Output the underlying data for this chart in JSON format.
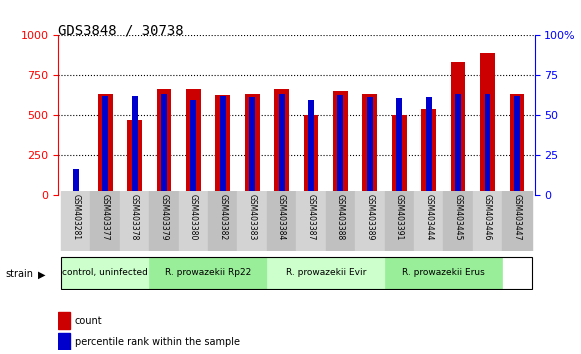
{
  "title": "GDS3848 / 30738",
  "samples": [
    "GSM403281",
    "GSM403377",
    "GSM403378",
    "GSM403379",
    "GSM403380",
    "GSM403382",
    "GSM403383",
    "GSM403384",
    "GSM403387",
    "GSM403388",
    "GSM403389",
    "GSM403391",
    "GSM403444",
    "GSM403445",
    "GSM403446",
    "GSM403447"
  ],
  "count": [
    15,
    635,
    470,
    665,
    665,
    625,
    635,
    665,
    500,
    650,
    635,
    500,
    535,
    830,
    890,
    635
  ],
  "percentile": [
    160,
    620,
    620,
    635,
    595,
    620,
    615,
    630,
    595,
    625,
    615,
    610,
    615,
    630,
    630,
    620
  ],
  "groups": [
    {
      "label": "control, uninfected",
      "start": 0,
      "end": 3,
      "color": "#ccffcc"
    },
    {
      "label": "R. prowazekii Rp22",
      "start": 3,
      "end": 7,
      "color": "#99ff99"
    },
    {
      "label": "R. prowazekii Evir",
      "start": 7,
      "end": 11,
      "color": "#ccffcc"
    },
    {
      "label": "R. prowazekii Erus",
      "start": 11,
      "end": 15,
      "color": "#99ff99"
    }
  ],
  "bar_color_count": "#cc0000",
  "bar_color_percentile": "#0000cc",
  "ylim_left": [
    0,
    1000
  ],
  "ylim_right": [
    0,
    100
  ],
  "yticks_left": [
    0,
    250,
    500,
    750,
    1000
  ],
  "yticks_right": [
    0,
    25,
    50,
    75,
    100
  ],
  "legend_count": "count",
  "legend_percentile": "percentile rank within the sample",
  "strain_label": "strain",
  "background_color": "#f0f0f0"
}
